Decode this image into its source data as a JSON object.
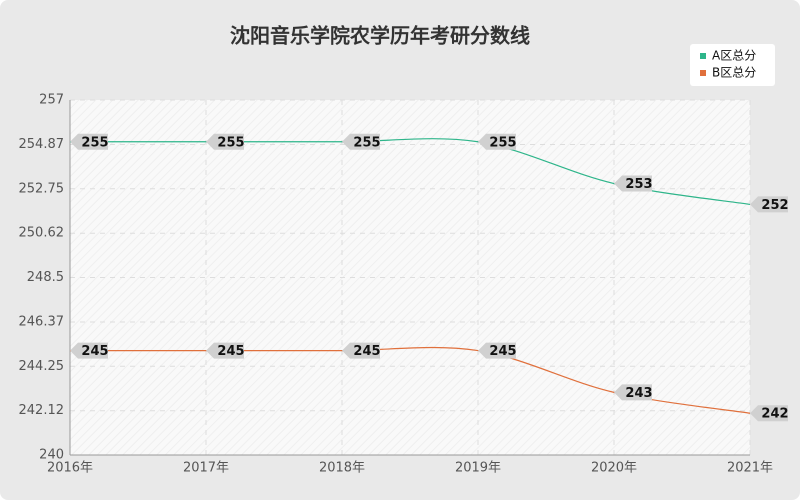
{
  "chart_data": {
    "type": "line",
    "title": "沈阳音乐学院农学历年考研分数线",
    "categories": [
      "2016年",
      "2017年",
      "2018年",
      "2019年",
      "2020年",
      "2021年"
    ],
    "series": [
      {
        "name": "A区总分",
        "color": "#2eb58a",
        "values": [
          255,
          255,
          255,
          255,
          253,
          252
        ]
      },
      {
        "name": "B区总分",
        "color": "#e0703c",
        "values": [
          245,
          245,
          245,
          245,
          243,
          242
        ]
      }
    ],
    "ylim": [
      240,
      257
    ],
    "yticks": [
      240,
      242.12,
      244.25,
      246.37,
      248.5,
      250.62,
      252.75,
      254.87,
      257
    ],
    "grid": true,
    "legend": "top-right",
    "smooth": true
  }
}
